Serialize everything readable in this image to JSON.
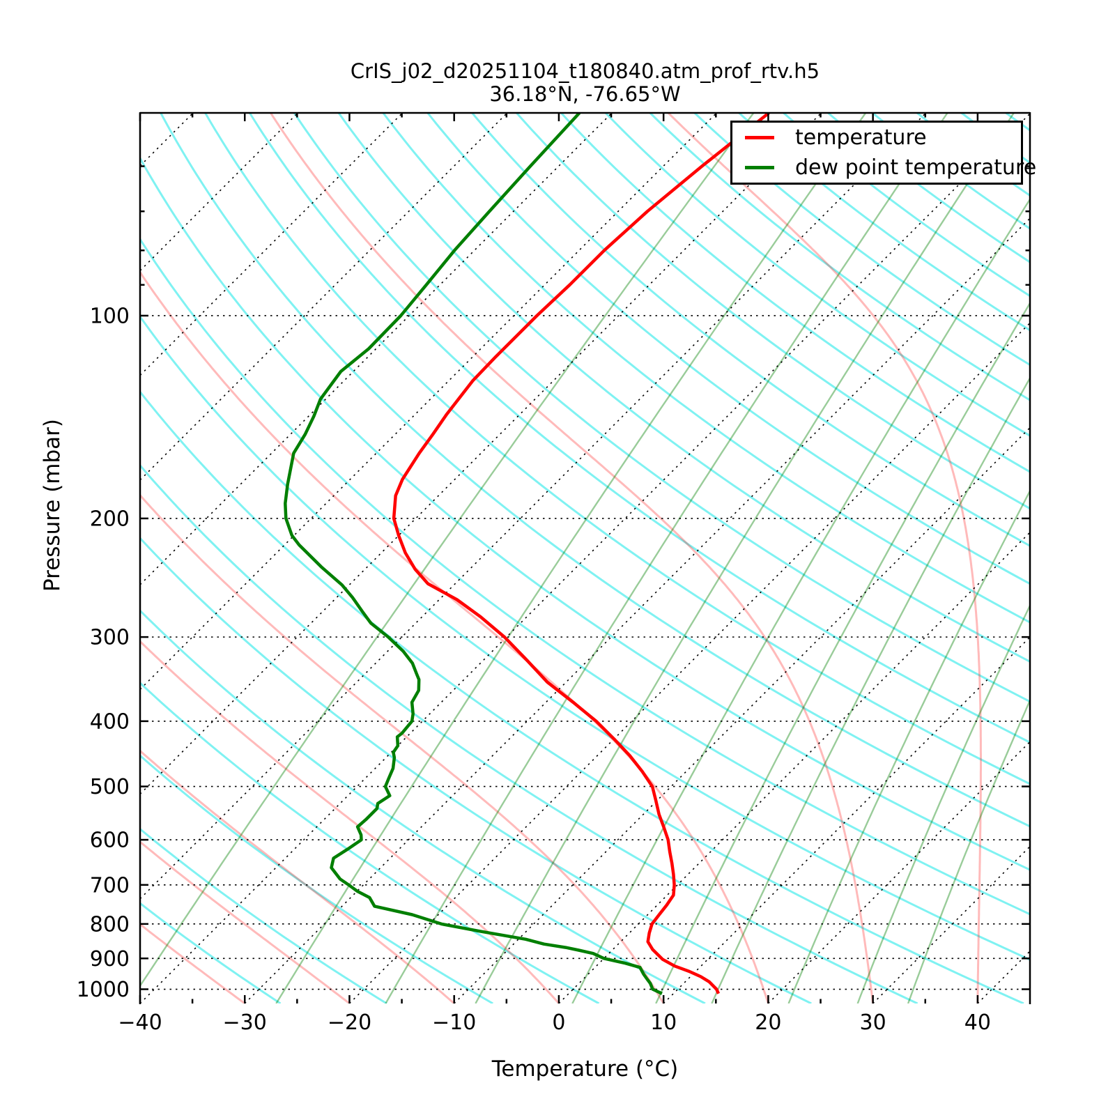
{
  "title": {
    "line1": "CrIS_j02_d20251104_t180840.atm_prof_rtv.h5",
    "line2": "36.18°N, -76.65°W"
  },
  "axes": {
    "xlabel": "Temperature (°C)",
    "ylabel": "Pressure (mbar)"
  },
  "legend": {
    "position": "upper right",
    "items": [
      {
        "label": "temperature",
        "color": "#ff0000"
      },
      {
        "label": "dew point temperature",
        "color": "#007f00"
      }
    ]
  },
  "chart_data": {
    "type": "line",
    "variant": "skew-t-log-p",
    "title": "CrIS_j02_d20251104_t180840.atm_prof_rtv.h5",
    "subtitle": "36.18°N, -76.65°W",
    "xlabel": "Temperature (°C)",
    "ylabel": "Pressure (mbar)",
    "xlim": [
      -40,
      45
    ],
    "pressure_lim": [
      1050,
      50
    ],
    "skew_deg": 45,
    "grid": true,
    "x_tick_values": [
      -40,
      -30,
      -20,
      -10,
      0,
      10,
      20,
      30,
      40
    ],
    "x_tick_labels": [
      "−40",
      "−30",
      "−20",
      "−10",
      "0",
      "10",
      "20",
      "30",
      "40"
    ],
    "x_minor_ticks": [
      -35,
      -25,
      -15,
      -5,
      5,
      15,
      25,
      35
    ],
    "y_tick_values": [
      100,
      200,
      300,
      400,
      500,
      600,
      700,
      800,
      900,
      1000
    ],
    "y_tick_labels": [
      "100",
      "200",
      "300",
      "400",
      "500",
      "600",
      "700",
      "800",
      "900",
      "1000"
    ],
    "y_minor_ticks": [
      60,
      70,
      80,
      90
    ],
    "background_lines": {
      "isotherms": {
        "t_min": -120,
        "t_max": 40,
        "step": 10,
        "color": "#000000",
        "style": "dotted"
      },
      "dry_adiabats": {
        "theta_c_min": -30,
        "theta_c_max": 270,
        "step": 10,
        "color_rgba": [
          0,
          229,
          229,
          0.5
        ]
      },
      "moist_adiabats": {
        "t0_c_min": -40,
        "t0_c_max": 70,
        "step": 10,
        "color_rgba": [
          255,
          26,
          26,
          0.3
        ]
      },
      "mixing_ratio": {
        "w_g_kg": [
          0.1,
          0.4,
          1,
          2,
          4,
          7,
          10,
          16,
          24,
          32
        ],
        "color_rgba": [
          0,
          128,
          0,
          0.4
        ]
      }
    },
    "series": [
      {
        "name": "temperature",
        "color": "#ff0000",
        "width": 4.5,
        "points_p_t": [
          [
            1015,
            14.3
          ],
          [
            1000,
            13.7
          ],
          [
            975,
            12.3
          ],
          [
            958,
            11.0
          ],
          [
            941,
            9.4
          ],
          [
            924,
            7.5
          ],
          [
            903,
            5.7
          ],
          [
            873,
            3.8
          ],
          [
            850,
            2.6
          ],
          [
            825,
            1.9
          ],
          [
            800,
            1.3
          ],
          [
            775,
            1.1
          ],
          [
            750,
            0.9
          ],
          [
            725,
            0.6
          ],
          [
            700,
            -0.3
          ],
          [
            675,
            -1.4
          ],
          [
            650,
            -2.6
          ],
          [
            625,
            -3.9
          ],
          [
            600,
            -5.2
          ],
          [
            575,
            -6.8
          ],
          [
            550,
            -8.5
          ],
          [
            525,
            -10.1
          ],
          [
            500,
            -11.8
          ],
          [
            475,
            -14.2
          ],
          [
            450,
            -16.9
          ],
          [
            425,
            -20.0
          ],
          [
            400,
            -23.4
          ],
          [
            375,
            -27.4
          ],
          [
            350,
            -31.8
          ],
          [
            325,
            -35.8
          ],
          [
            300,
            -40.2
          ],
          [
            280,
            -44.4
          ],
          [
            264,
            -48.3
          ],
          [
            250,
            -52.6
          ],
          [
            238,
            -55.2
          ],
          [
            225,
            -57.7
          ],
          [
            212,
            -60.0
          ],
          [
            200,
            -62.1
          ],
          [
            185,
            -64.1
          ],
          [
            175,
            -65.0
          ],
          [
            160,
            -65.9
          ],
          [
            150,
            -66.4
          ],
          [
            140,
            -67.0
          ],
          [
            125,
            -67.7
          ],
          [
            115,
            -67.8
          ],
          [
            100,
            -67.8
          ],
          [
            90,
            -67.6
          ],
          [
            80,
            -67.6
          ],
          [
            70,
            -67.2
          ],
          [
            60,
            -66.3
          ],
          [
            50,
            -65.0
          ]
        ]
      },
      {
        "name": "dew point temperature",
        "color": "#007f00",
        "width": 4.5,
        "points_p_t": [
          [
            1015,
            8.9
          ],
          [
            1000,
            7.6
          ],
          [
            980,
            6.8
          ],
          [
            966,
            6.1
          ],
          [
            950,
            5.3
          ],
          [
            928,
            4.3
          ],
          [
            915,
            2.5
          ],
          [
            900,
            0.0
          ],
          [
            885,
            -1.5
          ],
          [
            875,
            -3.2
          ],
          [
            867,
            -4.7
          ],
          [
            857,
            -7.1
          ],
          [
            843,
            -9.3
          ],
          [
            820,
            -14.5
          ],
          [
            800,
            -18.8
          ],
          [
            775,
            -22.5
          ],
          [
            753,
            -26.9
          ],
          [
            731,
            -28.2
          ],
          [
            715,
            -30.0
          ],
          [
            700,
            -31.4
          ],
          [
            686,
            -32.8
          ],
          [
            660,
            -34.7
          ],
          [
            639,
            -35.4
          ],
          [
            619,
            -34.9
          ],
          [
            600,
            -34.5
          ],
          [
            590,
            -35.0
          ],
          [
            574,
            -36.1
          ],
          [
            560,
            -36.0
          ],
          [
            539,
            -36.0
          ],
          [
            530,
            -36.4
          ],
          [
            516,
            -36.0
          ],
          [
            500,
            -37.3
          ],
          [
            485,
            -37.8
          ],
          [
            470,
            -38.3
          ],
          [
            453,
            -39.2
          ],
          [
            445,
            -39.8
          ],
          [
            435,
            -40.0
          ],
          [
            422,
            -40.9
          ],
          [
            417,
            -40.8
          ],
          [
            400,
            -41.0
          ],
          [
            390,
            -41.6
          ],
          [
            375,
            -42.8
          ],
          [
            360,
            -43.3
          ],
          [
            347,
            -44.3
          ],
          [
            340,
            -45.1
          ],
          [
            328,
            -46.5
          ],
          [
            315,
            -48.5
          ],
          [
            300,
            -51.3
          ],
          [
            286,
            -54.3
          ],
          [
            275,
            -56.2
          ],
          [
            262,
            -58.5
          ],
          [
            251,
            -60.7
          ],
          [
            236,
            -64.4
          ],
          [
            219,
            -68.6
          ],
          [
            212,
            -70.2
          ],
          [
            200,
            -72.4
          ],
          [
            190,
            -73.9
          ],
          [
            178,
            -75.5
          ],
          [
            160,
            -77.9
          ],
          [
            150,
            -78.6
          ],
          [
            141,
            -79.5
          ],
          [
            133,
            -80.5
          ],
          [
            121,
            -81.2
          ],
          [
            112,
            -80.7
          ],
          [
            100,
            -80.8
          ],
          [
            90,
            -81.3
          ],
          [
            80,
            -81.9
          ],
          [
            70,
            -82.3
          ],
          [
            60,
            -82.7
          ],
          [
            50,
            -83.1
          ]
        ]
      }
    ]
  }
}
